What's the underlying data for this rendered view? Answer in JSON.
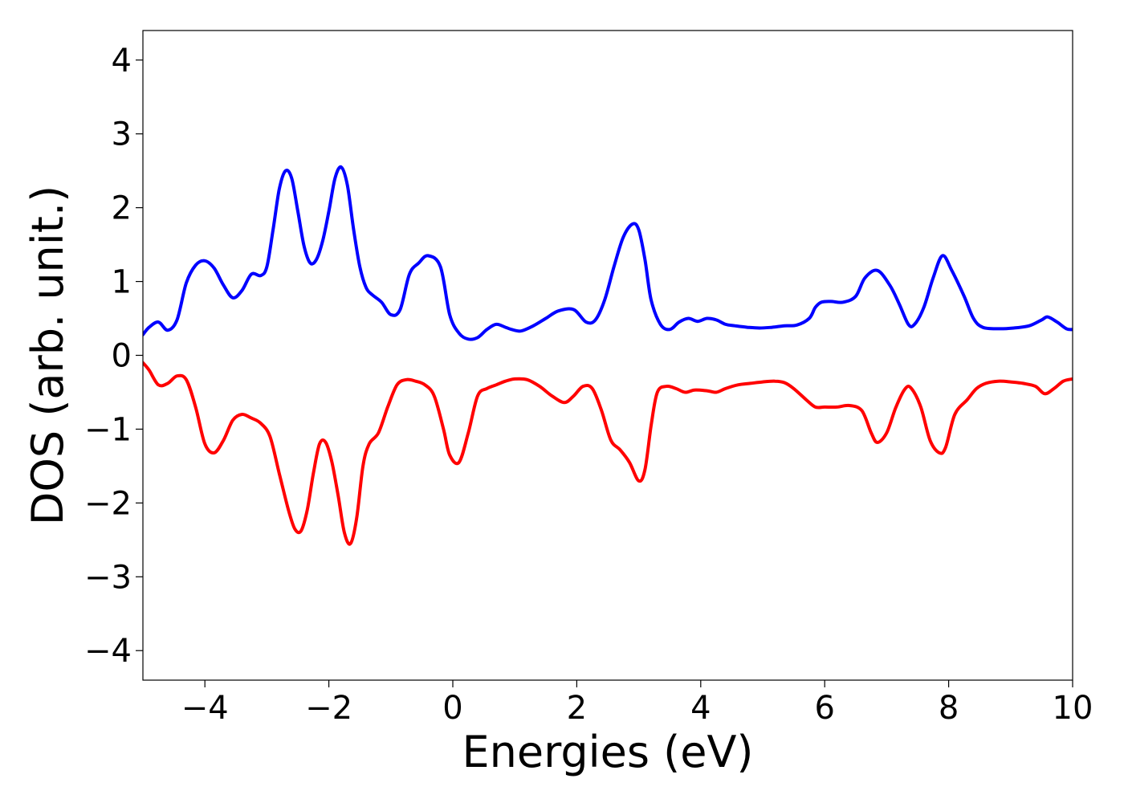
{
  "chart_data": {
    "type": "line",
    "xlabel": "Energies (eV)",
    "ylabel": "DOS (arb. unit.)",
    "xlim": [
      -5,
      10
    ],
    "ylim": [
      -4.4,
      4.4
    ],
    "xticks": [
      -4,
      -2,
      0,
      2,
      4,
      6,
      8,
      10
    ],
    "xtick_labels": [
      "−4",
      "−2",
      "0",
      "2",
      "4",
      "6",
      "8",
      "10"
    ],
    "yticks": [
      4,
      3,
      2,
      1,
      0,
      -1,
      -2,
      -3,
      -4
    ],
    "ytick_labels": [
      "4",
      "3",
      "2",
      "1",
      "0",
      "−1",
      "−2",
      "−3",
      "−4"
    ],
    "grid": false,
    "legend": "none",
    "series": [
      {
        "color": "#0000ff",
        "x": [
          -5.0,
          -4.9,
          -4.75,
          -4.6,
          -4.45,
          -4.3,
          -4.15,
          -4.0,
          -3.85,
          -3.7,
          -3.55,
          -3.4,
          -3.25,
          -3.1,
          -3.0,
          -2.9,
          -2.8,
          -2.7,
          -2.6,
          -2.5,
          -2.4,
          -2.3,
          -2.2,
          -2.1,
          -2.0,
          -1.9,
          -1.8,
          -1.7,
          -1.6,
          -1.5,
          -1.4,
          -1.3,
          -1.15,
          -1.0,
          -0.85,
          -0.7,
          -0.55,
          -0.4,
          -0.2,
          -0.05,
          0.1,
          0.25,
          0.4,
          0.55,
          0.7,
          0.85,
          0.95,
          1.1,
          1.3,
          1.5,
          1.7,
          1.95,
          2.15,
          2.3,
          2.45,
          2.6,
          2.75,
          2.9,
          3.0,
          3.1,
          3.2,
          3.35,
          3.5,
          3.65,
          3.8,
          3.95,
          4.1,
          4.25,
          4.4,
          4.55,
          4.75,
          4.95,
          5.15,
          5.35,
          5.55,
          5.75,
          5.85,
          5.95,
          6.1,
          6.3,
          6.5,
          6.65,
          6.85,
          7.05,
          7.2,
          7.35,
          7.45,
          7.6,
          7.75,
          7.9,
          8.05,
          8.25,
          8.4,
          8.55,
          8.8,
          9.05,
          9.3,
          9.5,
          9.6,
          9.75,
          9.9,
          10.0
        ],
        "y": [
          0.28,
          0.38,
          0.45,
          0.34,
          0.48,
          0.98,
          1.22,
          1.28,
          1.18,
          0.95,
          0.78,
          0.88,
          1.1,
          1.08,
          1.2,
          1.7,
          2.25,
          2.5,
          2.4,
          1.95,
          1.48,
          1.25,
          1.3,
          1.55,
          1.95,
          2.4,
          2.55,
          2.3,
          1.7,
          1.2,
          0.92,
          0.82,
          0.72,
          0.55,
          0.62,
          1.1,
          1.25,
          1.35,
          1.2,
          0.55,
          0.3,
          0.22,
          0.24,
          0.35,
          0.42,
          0.38,
          0.35,
          0.33,
          0.4,
          0.5,
          0.6,
          0.62,
          0.45,
          0.48,
          0.75,
          1.2,
          1.6,
          1.78,
          1.7,
          1.3,
          0.75,
          0.42,
          0.35,
          0.45,
          0.5,
          0.46,
          0.5,
          0.48,
          0.42,
          0.4,
          0.38,
          0.37,
          0.38,
          0.4,
          0.41,
          0.5,
          0.65,
          0.72,
          0.73,
          0.72,
          0.8,
          1.05,
          1.15,
          0.95,
          0.7,
          0.42,
          0.42,
          0.65,
          1.05,
          1.35,
          1.15,
          0.8,
          0.5,
          0.38,
          0.36,
          0.37,
          0.4,
          0.48,
          0.52,
          0.45,
          0.36,
          0.35
        ]
      },
      {
        "color": "#ff0000",
        "x": [
          -5.0,
          -4.9,
          -4.75,
          -4.6,
          -4.45,
          -4.3,
          -4.15,
          -4.0,
          -3.85,
          -3.7,
          -3.55,
          -3.4,
          -3.25,
          -3.1,
          -2.95,
          -2.8,
          -2.65,
          -2.55,
          -2.45,
          -2.35,
          -2.25,
          -2.15,
          -2.05,
          -1.95,
          -1.85,
          -1.75,
          -1.65,
          -1.55,
          -1.45,
          -1.35,
          -1.2,
          -1.05,
          -0.9,
          -0.75,
          -0.6,
          -0.45,
          -0.3,
          -0.15,
          -0.05,
          0.1,
          0.25,
          0.4,
          0.55,
          0.7,
          0.85,
          1.0,
          1.2,
          1.4,
          1.6,
          1.8,
          1.95,
          2.1,
          2.25,
          2.4,
          2.55,
          2.7,
          2.85,
          3.0,
          3.1,
          3.2,
          3.3,
          3.45,
          3.6,
          3.75,
          3.9,
          4.1,
          4.25,
          4.4,
          4.6,
          4.8,
          5.0,
          5.2,
          5.35,
          5.5,
          5.7,
          5.85,
          6.0,
          6.2,
          6.4,
          6.6,
          6.75,
          6.85,
          7.0,
          7.15,
          7.3,
          7.4,
          7.55,
          7.7,
          7.85,
          7.95,
          8.1,
          8.3,
          8.45,
          8.6,
          8.8,
          9.0,
          9.2,
          9.4,
          9.55,
          9.7,
          9.85,
          10.0
        ],
        "y": [
          -0.1,
          -0.2,
          -0.4,
          -0.38,
          -0.28,
          -0.33,
          -0.7,
          -1.2,
          -1.32,
          -1.15,
          -0.88,
          -0.8,
          -0.85,
          -0.92,
          -1.1,
          -1.6,
          -2.1,
          -2.35,
          -2.38,
          -2.1,
          -1.6,
          -1.2,
          -1.18,
          -1.45,
          -1.9,
          -2.4,
          -2.55,
          -2.2,
          -1.5,
          -1.2,
          -1.05,
          -0.7,
          -0.4,
          -0.33,
          -0.35,
          -0.4,
          -0.55,
          -1.0,
          -1.35,
          -1.45,
          -1.05,
          -0.55,
          -0.45,
          -0.4,
          -0.35,
          -0.32,
          -0.33,
          -0.42,
          -0.55,
          -0.64,
          -0.55,
          -0.42,
          -0.45,
          -0.75,
          -1.15,
          -1.28,
          -1.45,
          -1.7,
          -1.55,
          -0.95,
          -0.5,
          -0.42,
          -0.45,
          -0.5,
          -0.47,
          -0.48,
          -0.5,
          -0.45,
          -0.4,
          -0.38,
          -0.36,
          -0.35,
          -0.37,
          -0.45,
          -0.6,
          -0.7,
          -0.7,
          -0.7,
          -0.68,
          -0.75,
          -1.05,
          -1.18,
          -1.05,
          -0.7,
          -0.45,
          -0.45,
          -0.7,
          -1.15,
          -1.32,
          -1.25,
          -0.8,
          -0.6,
          -0.45,
          -0.38,
          -0.35,
          -0.36,
          -0.38,
          -0.42,
          -0.52,
          -0.45,
          -0.35,
          -0.32
        ]
      }
    ]
  }
}
